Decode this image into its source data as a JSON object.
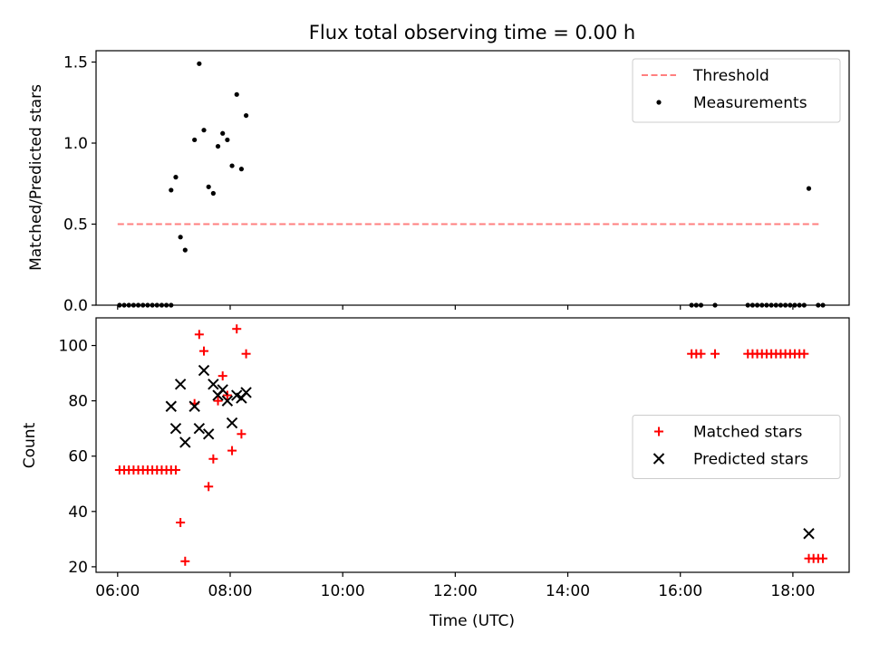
{
  "chart_data": {
    "title": "Flux total observing time = 0.00 h",
    "xlabel": "Time (UTC)",
    "x_ticks": [
      "06:00",
      "08:00",
      "10:00",
      "12:00",
      "14:00",
      "16:00",
      "18:00"
    ],
    "xlim": [
      "05:37",
      "19:00"
    ],
    "panels": [
      {
        "type": "scatter",
        "ylabel": "Matched/Predicted stars",
        "ylim": [
          0,
          1.57
        ],
        "y_ticks": [
          "0.0",
          "0.5",
          "1.0",
          "1.5"
        ],
        "legend_position": "top-right",
        "threshold": {
          "name": "Threshold",
          "value": 0.5,
          "x_range": [
            "06:00",
            "18:30"
          ],
          "color": "#ff7f7f",
          "style": "dashed"
        },
        "series": [
          {
            "name": "Measurements",
            "marker": "dot",
            "color": "#000000",
            "points": [
              [
                "06:02",
                0
              ],
              [
                "06:07",
                0
              ],
              [
                "06:12",
                0
              ],
              [
                "06:17",
                0
              ],
              [
                "06:22",
                0
              ],
              [
                "06:27",
                0
              ],
              [
                "06:32",
                0
              ],
              [
                "06:37",
                0
              ],
              [
                "06:42",
                0
              ],
              [
                "06:47",
                0
              ],
              [
                "06:52",
                0
              ],
              [
                "06:57",
                0
              ],
              [
                "06:57",
                0.71
              ],
              [
                "07:02",
                0.79
              ],
              [
                "07:07",
                0.42
              ],
              [
                "07:12",
                0.34
              ],
              [
                "07:22",
                1.02
              ],
              [
                "07:27",
                1.49
              ],
              [
                "07:32",
                1.08
              ],
              [
                "07:37",
                0.73
              ],
              [
                "07:42",
                0.69
              ],
              [
                "07:47",
                0.98
              ],
              [
                "07:52",
                1.06
              ],
              [
                "07:57",
                1.02
              ],
              [
                "08:02",
                0.86
              ],
              [
                "08:07",
                1.3
              ],
              [
                "08:12",
                0.84
              ],
              [
                "08:17",
                1.17
              ],
              [
                "16:12",
                0
              ],
              [
                "16:17",
                0
              ],
              [
                "16:22",
                0
              ],
              [
                "16:37",
                0
              ],
              [
                "17:12",
                0
              ],
              [
                "17:17",
                0
              ],
              [
                "17:22",
                0
              ],
              [
                "17:27",
                0
              ],
              [
                "17:32",
                0
              ],
              [
                "17:37",
                0
              ],
              [
                "17:42",
                0
              ],
              [
                "17:47",
                0
              ],
              [
                "17:52",
                0
              ],
              [
                "17:57",
                0
              ],
              [
                "18:02",
                0
              ],
              [
                "18:07",
                0
              ],
              [
                "18:12",
                0
              ],
              [
                "18:17",
                0.72
              ],
              [
                "18:27",
                0
              ],
              [
                "18:32",
                0
              ]
            ]
          }
        ]
      },
      {
        "type": "scatter",
        "ylabel": "Count",
        "ylim": [
          18,
          110
        ],
        "y_ticks": [
          "20",
          "40",
          "60",
          "80",
          "100"
        ],
        "legend_position": "center-right",
        "series": [
          {
            "name": "Matched stars",
            "marker": "plus",
            "color": "#ff0000",
            "points": [
              [
                "06:02",
                55
              ],
              [
                "06:07",
                55
              ],
              [
                "06:12",
                55
              ],
              [
                "06:17",
                55
              ],
              [
                "06:22",
                55
              ],
              [
                "06:27",
                55
              ],
              [
                "06:32",
                55
              ],
              [
                "06:37",
                55
              ],
              [
                "06:42",
                55
              ],
              [
                "06:47",
                55
              ],
              [
                "06:52",
                55
              ],
              [
                "06:57",
                55
              ],
              [
                "07:02",
                55
              ],
              [
                "07:07",
                36
              ],
              [
                "07:12",
                22
              ],
              [
                "07:22",
                79
              ],
              [
                "07:27",
                104
              ],
              [
                "07:32",
                98
              ],
              [
                "07:37",
                49
              ],
              [
                "07:42",
                59
              ],
              [
                "07:47",
                80
              ],
              [
                "07:52",
                89
              ],
              [
                "07:57",
                82
              ],
              [
                "08:02",
                62
              ],
              [
                "08:07",
                106
              ],
              [
                "08:12",
                68
              ],
              [
                "08:17",
                97
              ],
              [
                "16:12",
                97
              ],
              [
                "16:17",
                97
              ],
              [
                "16:22",
                97
              ],
              [
                "16:37",
                97
              ],
              [
                "17:12",
                97
              ],
              [
                "17:17",
                97
              ],
              [
                "17:22",
                97
              ],
              [
                "17:27",
                97
              ],
              [
                "17:32",
                97
              ],
              [
                "17:37",
                97
              ],
              [
                "17:42",
                97
              ],
              [
                "17:47",
                97
              ],
              [
                "17:52",
                97
              ],
              [
                "17:57",
                97
              ],
              [
                "18:02",
                97
              ],
              [
                "18:07",
                97
              ],
              [
                "18:12",
                97
              ],
              [
                "18:17",
                23
              ],
              [
                "18:22",
                23
              ],
              [
                "18:27",
                23
              ],
              [
                "18:32",
                23
              ]
            ]
          },
          {
            "name": "Predicted stars",
            "marker": "cross",
            "color": "#000000",
            "points": [
              [
                "06:57",
                78
              ],
              [
                "07:02",
                70
              ],
              [
                "07:07",
                86
              ],
              [
                "07:12",
                65
              ],
              [
                "07:22",
                78
              ],
              [
                "07:27",
                70
              ],
              [
                "07:32",
                91
              ],
              [
                "07:37",
                68
              ],
              [
                "07:42",
                86
              ],
              [
                "07:47",
                82
              ],
              [
                "07:52",
                84
              ],
              [
                "07:57",
                80
              ],
              [
                "08:02",
                72
              ],
              [
                "08:07",
                82
              ],
              [
                "08:12",
                81
              ],
              [
                "08:17",
                83
              ],
              [
                "18:17",
                32
              ]
            ]
          }
        ]
      }
    ]
  }
}
